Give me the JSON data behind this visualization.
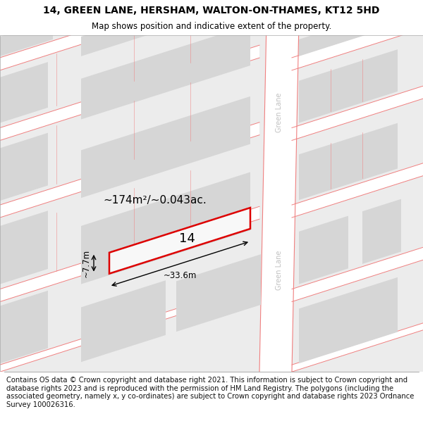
{
  "title_line1": "14, GREEN LANE, HERSHAM, WALTON-ON-THAMES, KT12 5HD",
  "title_line2": "Map shows position and indicative extent of the property.",
  "footer_text": "Contains OS data © Crown copyright and database right 2021. This information is subject to Crown copyright and database rights 2023 and is reproduced with the permission of HM Land Registry. The polygons (including the associated geometry, namely x, y co-ordinates) are subject to Crown copyright and database rights 2023 Ordnance Survey 100026316.",
  "bg_color": "#ffffff",
  "building_color": "#d6d6d6",
  "road_fill": "#ffffff",
  "road_border": "#f08080",
  "road_label_color": "#c0c0c0",
  "highlight_color": "#dd0000",
  "area_text": "~174m²/~0.043ac.",
  "width_text": "~33.6m",
  "height_text": "~7.7m",
  "plot_number": "14",
  "title_fontsize": 10,
  "subtitle_fontsize": 8.5,
  "footer_fontsize": 7.2,
  "map_bg": "#ececec"
}
